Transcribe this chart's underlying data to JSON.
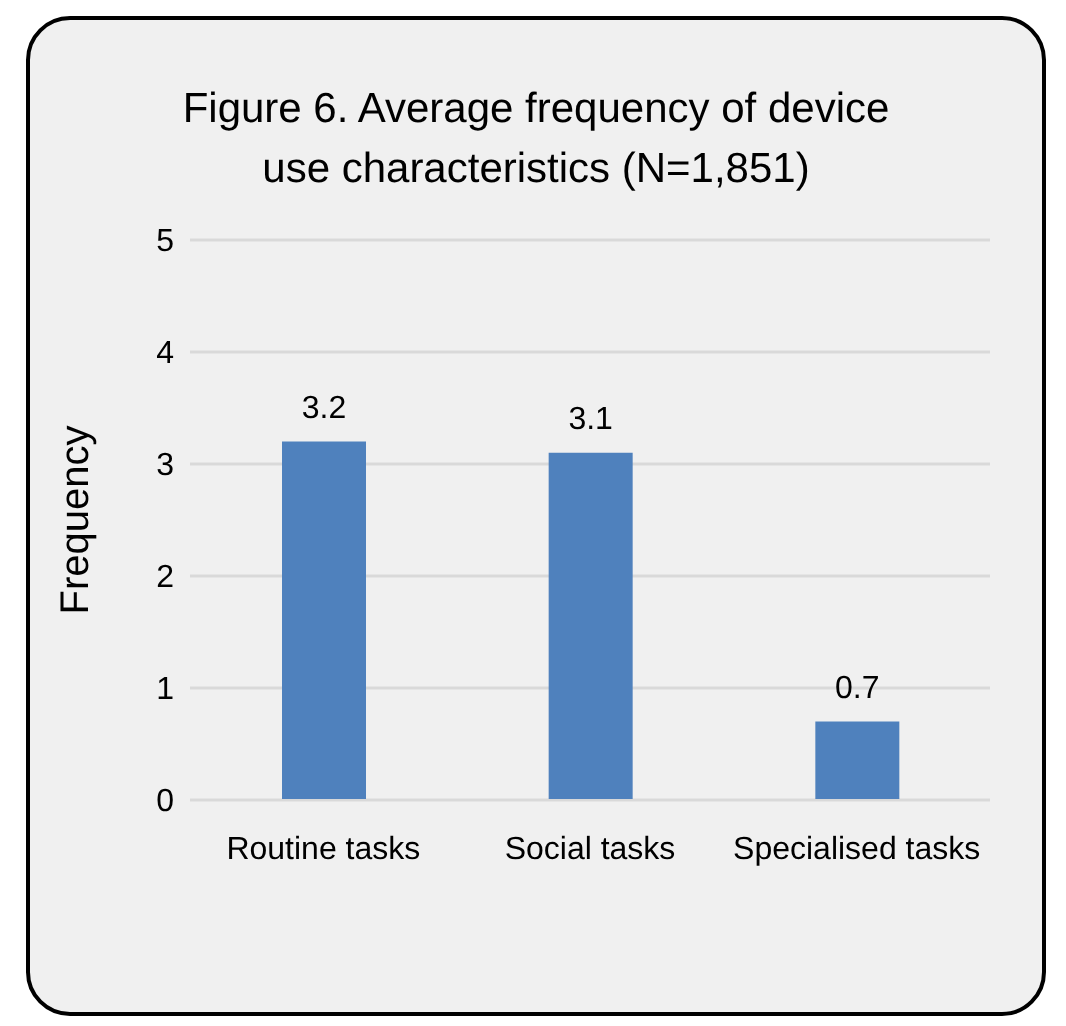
{
  "chart_data": {
    "type": "bar",
    "title": "Figure 6. Average frequency of device use characteristics (N=1,851)",
    "ylabel": "Frequency",
    "categories": [
      "Routine tasks",
      "Social tasks",
      "Specialised tasks"
    ],
    "values": [
      3.2,
      3.1,
      0.7
    ],
    "color": "#4f81bd",
    "ylim": [
      0,
      5
    ],
    "yticks": [
      0,
      1,
      2,
      3,
      4,
      5
    ],
    "grid": "y",
    "data_labels": true
  }
}
